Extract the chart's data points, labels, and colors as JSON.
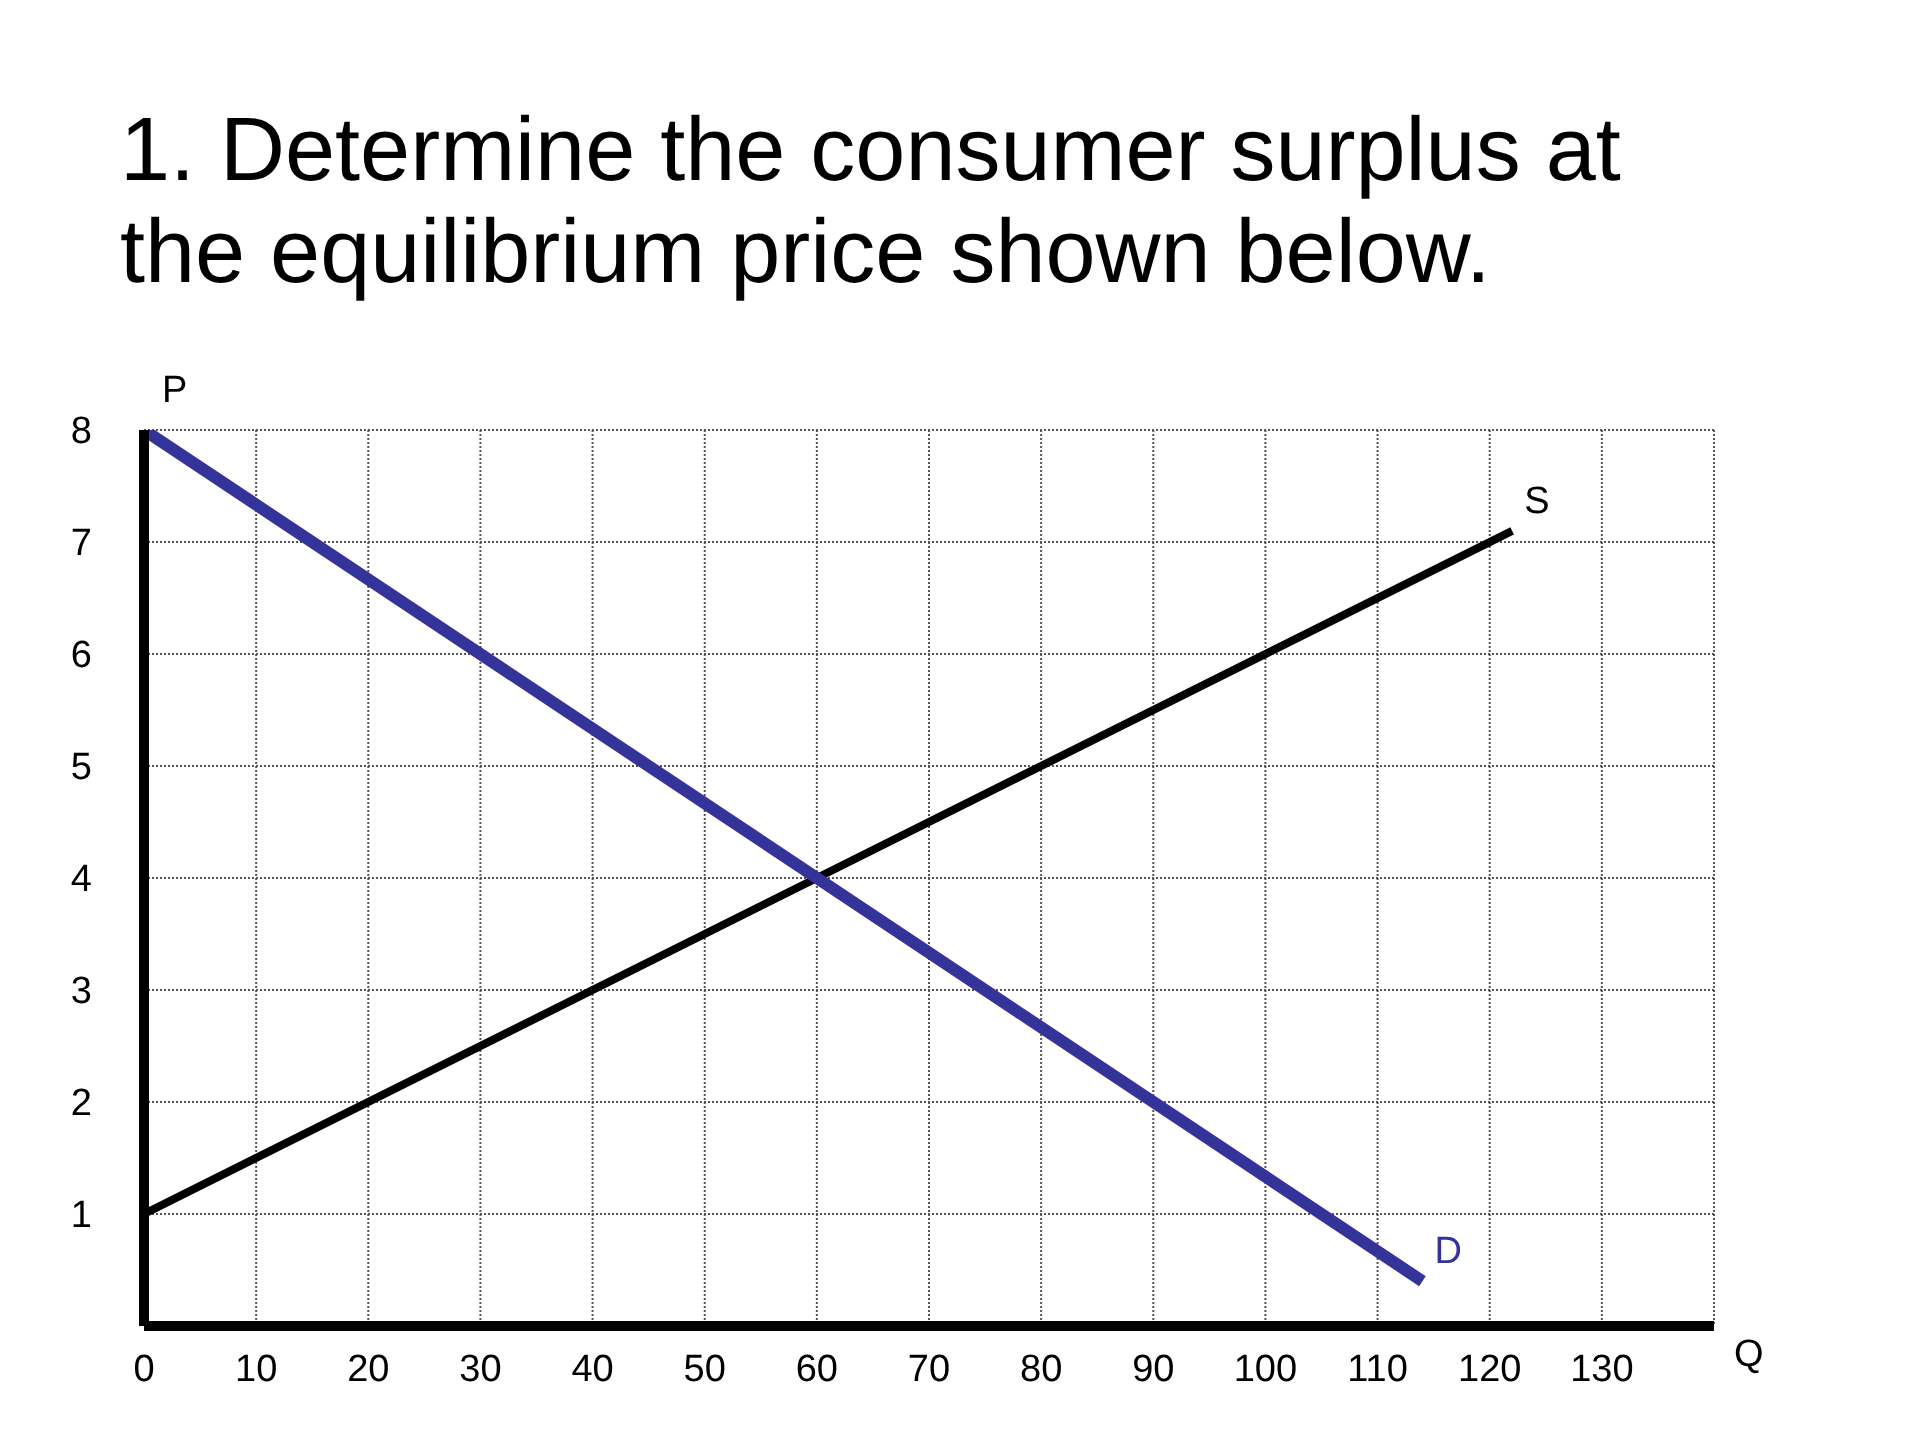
{
  "chart_data": {
    "type": "line",
    "title": "1. Determine the consumer surplus at the equilibrium price shown below.",
    "xlabel": "Q",
    "ylabel": "P",
    "series": [
      {
        "name": "S",
        "color": "#000000",
        "x": [
          0,
          60,
          122
        ],
        "values": [
          1,
          4,
          7.1
        ]
      },
      {
        "name": "D",
        "color": "#333399",
        "x": [
          0,
          60,
          114
        ],
        "values": [
          8,
          4,
          0.4
        ]
      }
    ],
    "xlim": [
      0,
      140
    ],
    "xticks": [
      0,
      10,
      20,
      30,
      40,
      50,
      60,
      70,
      80,
      90,
      100,
      110,
      120,
      130
    ],
    "ylim": [
      0,
      8
    ],
    "yticks": [
      1,
      2,
      3,
      4,
      5,
      6,
      7,
      8
    ],
    "grid": true,
    "marker": "none",
    "line_style": "solid"
  }
}
